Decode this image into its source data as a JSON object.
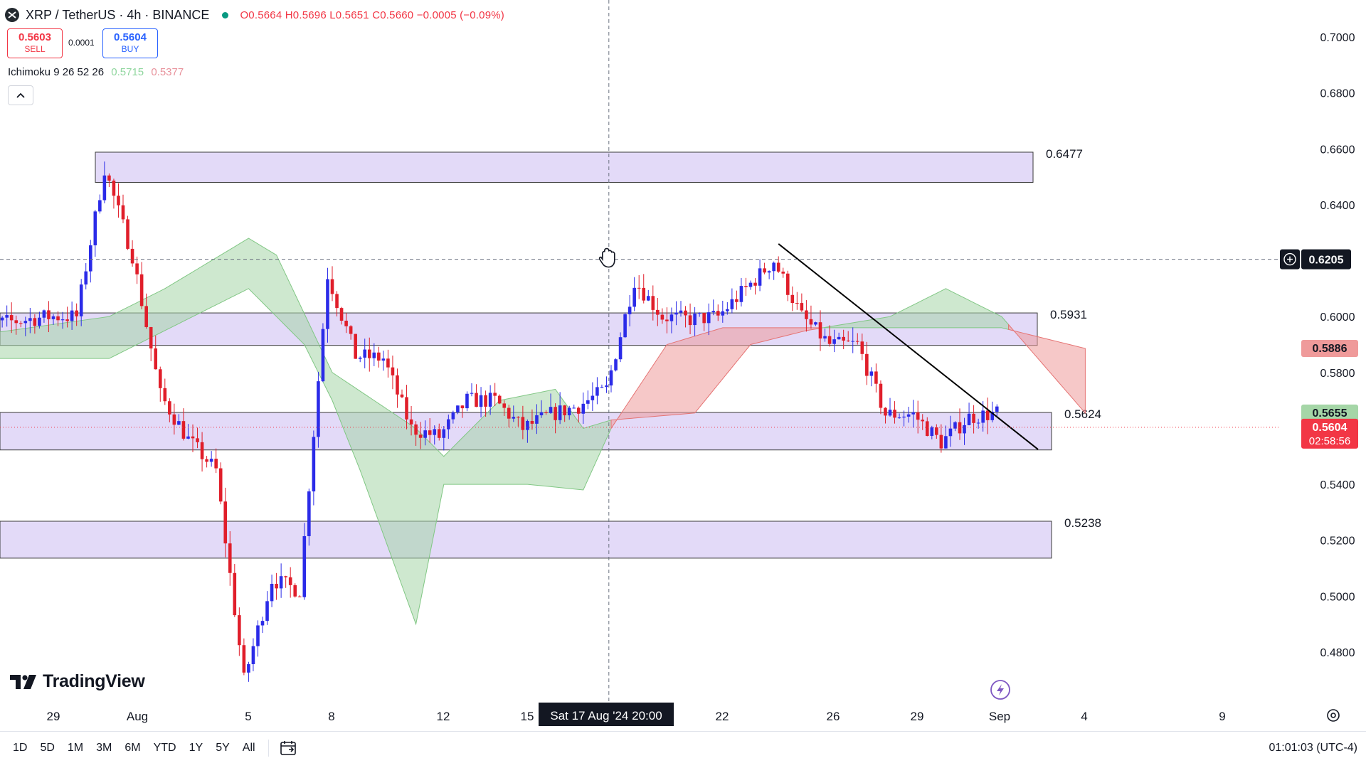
{
  "header": {
    "symbol": "XRP / TetherUS · 4h · BINANCE",
    "ohlc": "O0.5664 H0.5696 L0.5651 C0.5660 −0.0005 (−0.09%)",
    "sell_price": "0.5603",
    "sell_label": "SELL",
    "spread": "0.0001",
    "buy_price": "0.5604",
    "buy_label": "BUY",
    "indicator_name": "Ichimoku 9 26 52 26",
    "indicator_value_1": "0.5715",
    "indicator_value_2": "0.5377"
  },
  "logo_text": "TradingView",
  "colors": {
    "up": "#2b2be8",
    "down": "#e01e2a",
    "cloud_bull": "#a5d6a7",
    "cloud_bear": "#ef9a9a",
    "zone_fill": "#d9cdf5",
    "zone_stroke": "#3a3a3a",
    "last_price_bg": "#f23645"
  },
  "bottom_bar": {
    "ranges": [
      "1D",
      "5D",
      "1M",
      "3M",
      "6M",
      "YTD",
      "1Y",
      "5Y",
      "All"
    ],
    "clock": "01:01:03 (UTC-4)"
  },
  "chart_data": {
    "type": "candlestick",
    "ylim": [
      0.455,
      0.715
    ],
    "y_ticks": [
      "0.7000",
      "0.6800",
      "0.6600",
      "0.6400",
      "0.6000",
      "0.5800",
      "0.5400",
      "0.5200",
      "0.5000",
      "0.4800"
    ],
    "x_ticks": [
      "29",
      "Aug",
      "5",
      "8",
      "12",
      "15",
      "22",
      "26",
      "29",
      "Sep",
      "4",
      "9"
    ],
    "crosshair": {
      "x_label": "Sat 17 Aug '24   20:00",
      "y_label": "0.6205",
      "y_value": 0.6205
    },
    "price_labels": [
      {
        "value": 0.5886,
        "text": "0.5886",
        "kind": "cloud-bear"
      },
      {
        "value": 0.5655,
        "text": "0.5655",
        "kind": "cloud-bull"
      },
      {
        "value": 0.5604,
        "text": "0.5604",
        "sub": "02:58:56",
        "kind": "last"
      }
    ],
    "zones": [
      {
        "label": "0.6477",
        "top": 0.6588,
        "bottom": 0.648
      },
      {
        "label": "0.5931",
        "top": 0.6013,
        "bottom": 0.5897
      },
      {
        "label": "0.5624",
        "top": 0.5657,
        "bottom": 0.5523
      },
      {
        "label": "0.5238",
        "top": 0.5268,
        "bottom": 0.5136
      }
    ],
    "trendline": {
      "from": [
        "Aug 24",
        0.626
      ],
      "to": [
        "Sep 2",
        0.5525
      ]
    },
    "candles_summary": {
      "start": "Jul 26",
      "interval": "4h",
      "count": 222,
      "anchors": [
        [
          "Jul 26",
          0.596
        ],
        [
          "Jul 29",
          0.6
        ],
        [
          "Jul 30",
          0.6
        ],
        [
          "Jul 31",
          0.653
        ],
        [
          "Aug 1",
          0.622
        ],
        [
          "Aug 2",
          0.572
        ],
        [
          "Aug 3",
          0.556
        ],
        [
          "Aug 4",
          0.545
        ],
        [
          "Aug 5",
          0.47
        ],
        [
          "Aug 6",
          0.506
        ],
        [
          "Aug 7",
          0.502
        ],
        [
          "Aug 8",
          0.615
        ],
        [
          "Aug 9",
          0.586
        ],
        [
          "Aug 10",
          0.585
        ],
        [
          "Aug 11",
          0.56
        ],
        [
          "Aug 12",
          0.557
        ],
        [
          "Aug 13",
          0.57
        ],
        [
          "Aug 14",
          0.57
        ],
        [
          "Aug 15",
          0.56
        ],
        [
          "Aug 16",
          0.565
        ],
        [
          "Aug 17",
          0.568
        ],
        [
          "Aug 18",
          0.574
        ],
        [
          "Aug 19",
          0.613
        ],
        [
          "Aug 20",
          0.6
        ],
        [
          "Aug 21",
          0.599
        ],
        [
          "Aug 22",
          0.6
        ],
        [
          "Aug 23",
          0.61
        ],
        [
          "Aug 24",
          0.62
        ],
        [
          "Aug 25",
          0.6
        ],
        [
          "Aug 26",
          0.59
        ],
        [
          "Aug 27",
          0.59
        ],
        [
          "Aug 28",
          0.565
        ],
        [
          "Aug 29",
          0.565
        ],
        [
          "Aug 30",
          0.555
        ],
        [
          "Aug 31",
          0.564
        ],
        [
          "Sep 1",
          0.5655
        ]
      ]
    },
    "cloud_summary": {
      "senkou_a": [
        [
          "Jul 26",
          0.593
        ],
        [
          "Jul 31",
          0.6
        ],
        [
          "Aug 2",
          0.61
        ],
        [
          "Aug 5",
          0.628
        ],
        [
          "Aug 6",
          0.622
        ],
        [
          "Aug 8",
          0.58
        ],
        [
          "Aug 11",
          0.56
        ],
        [
          "Aug 12",
          0.55
        ],
        [
          "Aug 14",
          0.57
        ],
        [
          "Aug 16",
          0.574
        ],
        [
          "Aug 17",
          0.56
        ],
        [
          "Aug 18",
          0.563
        ],
        [
          "Aug 21",
          0.5655
        ],
        [
          "Aug 23",
          0.59
        ],
        [
          "Aug 25",
          0.595
        ],
        [
          "Aug 28",
          0.6
        ],
        [
          "Aug 30",
          0.61
        ],
        [
          "Sep 1",
          0.6
        ],
        [
          "Sep 4",
          0.5655
        ]
      ],
      "senkou_b": [
        [
          "Jul 26",
          0.585
        ],
        [
          "Jul 31",
          0.585
        ],
        [
          "Aug 5",
          0.61
        ],
        [
          "Aug 7",
          0.59
        ],
        [
          "Aug 8",
          0.57
        ],
        [
          "Aug 9",
          0.545
        ],
        [
          "Aug 11",
          0.49
        ],
        [
          "Aug 12",
          0.54
        ],
        [
          "Aug 15",
          0.54
        ],
        [
          "Aug 17",
          0.538
        ],
        [
          "Aug 18",
          0.56
        ],
        [
          "Aug 20",
          0.59
        ],
        [
          "Aug 22",
          0.596
        ],
        [
          "Sep 1",
          0.596
        ],
        [
          "Sep 4",
          0.5886
        ]
      ]
    }
  }
}
